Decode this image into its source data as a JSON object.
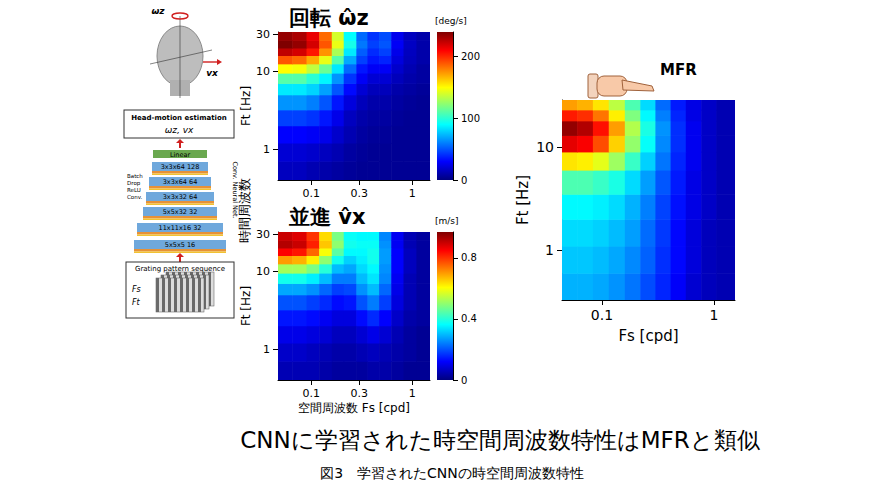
{
  "chart_data": [
    {
      "type": "heatmap",
      "title": "回転 ω̂z",
      "ylabel": "Ft [Hz]",
      "log": true,
      "grid": false,
      "xlim": [
        0.047,
        1.5
      ],
      "ylim": [
        0.4,
        32
      ],
      "xticks": [
        0.1,
        0.3,
        1
      ],
      "yticks": [
        1,
        10,
        30
      ],
      "x_bins": [
        0.047,
        0.065,
        0.09,
        0.12,
        0.16,
        0.21,
        0.28,
        0.36,
        0.47,
        0.62,
        0.82,
        1.1,
        1.5
      ],
      "y_bins": [
        0.4,
        0.7,
        1.2,
        2,
        3.2,
        5,
        7,
        9.5,
        12.5,
        16,
        20,
        25,
        32
      ],
      "values": [
        [
          15,
          15,
          12,
          10,
          8,
          6,
          5,
          5,
          5,
          5,
          5,
          5
        ],
        [
          20,
          20,
          18,
          15,
          12,
          8,
          6,
          5,
          5,
          5,
          5,
          5
        ],
        [
          30,
          30,
          28,
          25,
          18,
          12,
          8,
          6,
          6,
          5,
          5,
          5
        ],
        [
          45,
          45,
          42,
          35,
          25,
          15,
          10,
          8,
          8,
          6,
          5,
          5
        ],
        [
          65,
          65,
          60,
          50,
          35,
          22,
          14,
          10,
          10,
          8,
          6,
          5
        ],
        [
          85,
          85,
          80,
          68,
          50,
          32,
          20,
          14,
          14,
          10,
          8,
          6
        ],
        [
          110,
          110,
          100,
          88,
          65,
          42,
          28,
          20,
          20,
          14,
          10,
          8
        ],
        [
          150,
          148,
          135,
          115,
          85,
          55,
          35,
          28,
          28,
          18,
          12,
          8
        ],
        [
          190,
          185,
          170,
          145,
          110,
          70,
          45,
          35,
          38,
          22,
          14,
          10
        ],
        [
          225,
          220,
          205,
          175,
          130,
          85,
          52,
          40,
          45,
          25,
          15,
          10
        ],
        [
          240,
          235,
          220,
          190,
          145,
          95,
          58,
          45,
          50,
          28,
          16,
          10
        ],
        [
          235,
          230,
          215,
          185,
          140,
          90,
          55,
          42,
          48,
          26,
          15,
          10
        ]
      ],
      "colorbar": {
        "range": [
          0,
          240
        ],
        "ticks": [
          0,
          100,
          200
        ],
        "label": "[deg/s]"
      }
    },
    {
      "type": "heatmap",
      "title": "並進 v̂x",
      "xlabel": "空間周波数 Fs [cpd]",
      "ylabel": "Ft [Hz]",
      "log": true,
      "grid": false,
      "xlim": [
        0.047,
        1.5
      ],
      "ylim": [
        0.4,
        32
      ],
      "xticks": [
        0.1,
        0.3,
        1
      ],
      "yticks": [
        1,
        10,
        30
      ],
      "x_bins": [
        0.047,
        0.065,
        0.09,
        0.12,
        0.16,
        0.21,
        0.28,
        0.36,
        0.47,
        0.62,
        0.82,
        1.1,
        1.5
      ],
      "y_bins": [
        0.4,
        0.7,
        1.2,
        2,
        3.2,
        5,
        7,
        9.5,
        12.5,
        16,
        20,
        25,
        32
      ],
      "values": [
        [
          0.05,
          0.05,
          0.05,
          0.04,
          0.03,
          0.03,
          0.03,
          0.04,
          0.04,
          0.03,
          0.02,
          0.02
        ],
        [
          0.07,
          0.07,
          0.06,
          0.05,
          0.04,
          0.04,
          0.05,
          0.06,
          0.05,
          0.04,
          0.03,
          0.02
        ],
        [
          0.1,
          0.1,
          0.09,
          0.08,
          0.06,
          0.06,
          0.08,
          0.1,
          0.08,
          0.05,
          0.03,
          0.02
        ],
        [
          0.14,
          0.14,
          0.13,
          0.11,
          0.09,
          0.09,
          0.13,
          0.16,
          0.12,
          0.07,
          0.04,
          0.03
        ],
        [
          0.2,
          0.2,
          0.18,
          0.16,
          0.13,
          0.14,
          0.2,
          0.24,
          0.18,
          0.09,
          0.05,
          0.03
        ],
        [
          0.28,
          0.28,
          0.26,
          0.22,
          0.18,
          0.19,
          0.26,
          0.3,
          0.22,
          0.1,
          0.05,
          0.03
        ],
        [
          0.38,
          0.38,
          0.35,
          0.3,
          0.24,
          0.24,
          0.3,
          0.34,
          0.25,
          0.11,
          0.05,
          0.03
        ],
        [
          0.52,
          0.52,
          0.48,
          0.4,
          0.3,
          0.28,
          0.33,
          0.36,
          0.26,
          0.12,
          0.06,
          0.03
        ],
        [
          0.7,
          0.68,
          0.62,
          0.5,
          0.38,
          0.32,
          0.35,
          0.38,
          0.27,
          0.12,
          0.06,
          0.03
        ],
        [
          0.85,
          0.83,
          0.75,
          0.6,
          0.45,
          0.36,
          0.36,
          0.38,
          0.27,
          0.12,
          0.06,
          0.03
        ],
        [
          0.92,
          0.9,
          0.82,
          0.66,
          0.5,
          0.38,
          0.37,
          0.37,
          0.26,
          0.11,
          0.05,
          0.03
        ],
        [
          0.9,
          0.88,
          0.8,
          0.64,
          0.48,
          0.37,
          0.36,
          0.36,
          0.25,
          0.11,
          0.05,
          0.03
        ]
      ],
      "colorbar": {
        "range": [
          0,
          0.97
        ],
        "ticks": [
          0,
          0.4,
          0.8
        ],
        "label": "[m/s]"
      }
    },
    {
      "type": "heatmap",
      "xlabel": "Fs [cpd]",
      "ylabel": "Ft [Hz]",
      "annotation": "MFR",
      "log": true,
      "grid": false,
      "xlim": [
        0.044,
        1.54
      ],
      "ylim": [
        0.33,
        28.6
      ],
      "xticks": [
        0.1,
        1
      ],
      "yticks": [
        1,
        10
      ],
      "x_bins": [
        0.044,
        0.06,
        0.083,
        0.115,
        0.16,
        0.22,
        0.3,
        0.41,
        0.56,
        0.77,
        1.05,
        1.54
      ],
      "y_bins": [
        0.33,
        0.6,
        1.1,
        2,
        3.5,
        6,
        9,
        13,
        18,
        23,
        28.6
      ],
      "values": [
        [
          0.3,
          0.3,
          0.29,
          0.27,
          0.24,
          0.2,
          0.16,
          0.12,
          0.08,
          0.06,
          0.05
        ],
        [
          0.32,
          0.32,
          0.31,
          0.29,
          0.26,
          0.22,
          0.17,
          0.13,
          0.09,
          0.06,
          0.05
        ],
        [
          0.34,
          0.34,
          0.33,
          0.31,
          0.28,
          0.23,
          0.18,
          0.13,
          0.09,
          0.06,
          0.05
        ],
        [
          0.37,
          0.37,
          0.36,
          0.34,
          0.3,
          0.25,
          0.19,
          0.14,
          0.1,
          0.07,
          0.05
        ],
        [
          0.45,
          0.45,
          0.43,
          0.4,
          0.34,
          0.28,
          0.21,
          0.15,
          0.1,
          0.07,
          0.05
        ],
        [
          0.65,
          0.64,
          0.6,
          0.53,
          0.43,
          0.33,
          0.24,
          0.16,
          0.11,
          0.07,
          0.05
        ],
        [
          0.9,
          0.88,
          0.8,
          0.67,
          0.52,
          0.38,
          0.26,
          0.17,
          0.11,
          0.07,
          0.05
        ],
        [
          0.98,
          0.95,
          0.86,
          0.72,
          0.55,
          0.4,
          0.27,
          0.17,
          0.11,
          0.07,
          0.05
        ],
        [
          0.85,
          0.83,
          0.76,
          0.64,
          0.5,
          0.37,
          0.25,
          0.16,
          0.1,
          0.07,
          0.05
        ],
        [
          0.72,
          0.7,
          0.65,
          0.56,
          0.45,
          0.34,
          0.23,
          0.15,
          0.1,
          0.07,
          0.05
        ]
      ],
      "color_range": [
        0,
        1
      ]
    }
  ],
  "shared_ylabel": "時間周波数",
  "headline": "CNNに学習された時空間周波数特性はMFRと類似",
  "caption": "図3　学習されたCNNの時空間周波数特性",
  "diagram": {
    "head_labels": [
      "ωz",
      "vx"
    ],
    "estimation_box": {
      "title": "Head-motion estimation",
      "outputs": "ωz, vx"
    },
    "layers": [
      "Linear",
      "3x3x64  128",
      "3x3x64  64",
      "3x3x32  64",
      "5x5x32  32",
      "11x11x16  32",
      "5x5x5  16"
    ],
    "layer_ops": [
      "Batch",
      "Drop",
      "ReLU",
      "Conv."
    ],
    "network_label": "Conv. Neural Net.",
    "input_box": {
      "title": "Grating pattern sequence",
      "params": [
        "Fs",
        "Ft"
      ]
    }
  }
}
